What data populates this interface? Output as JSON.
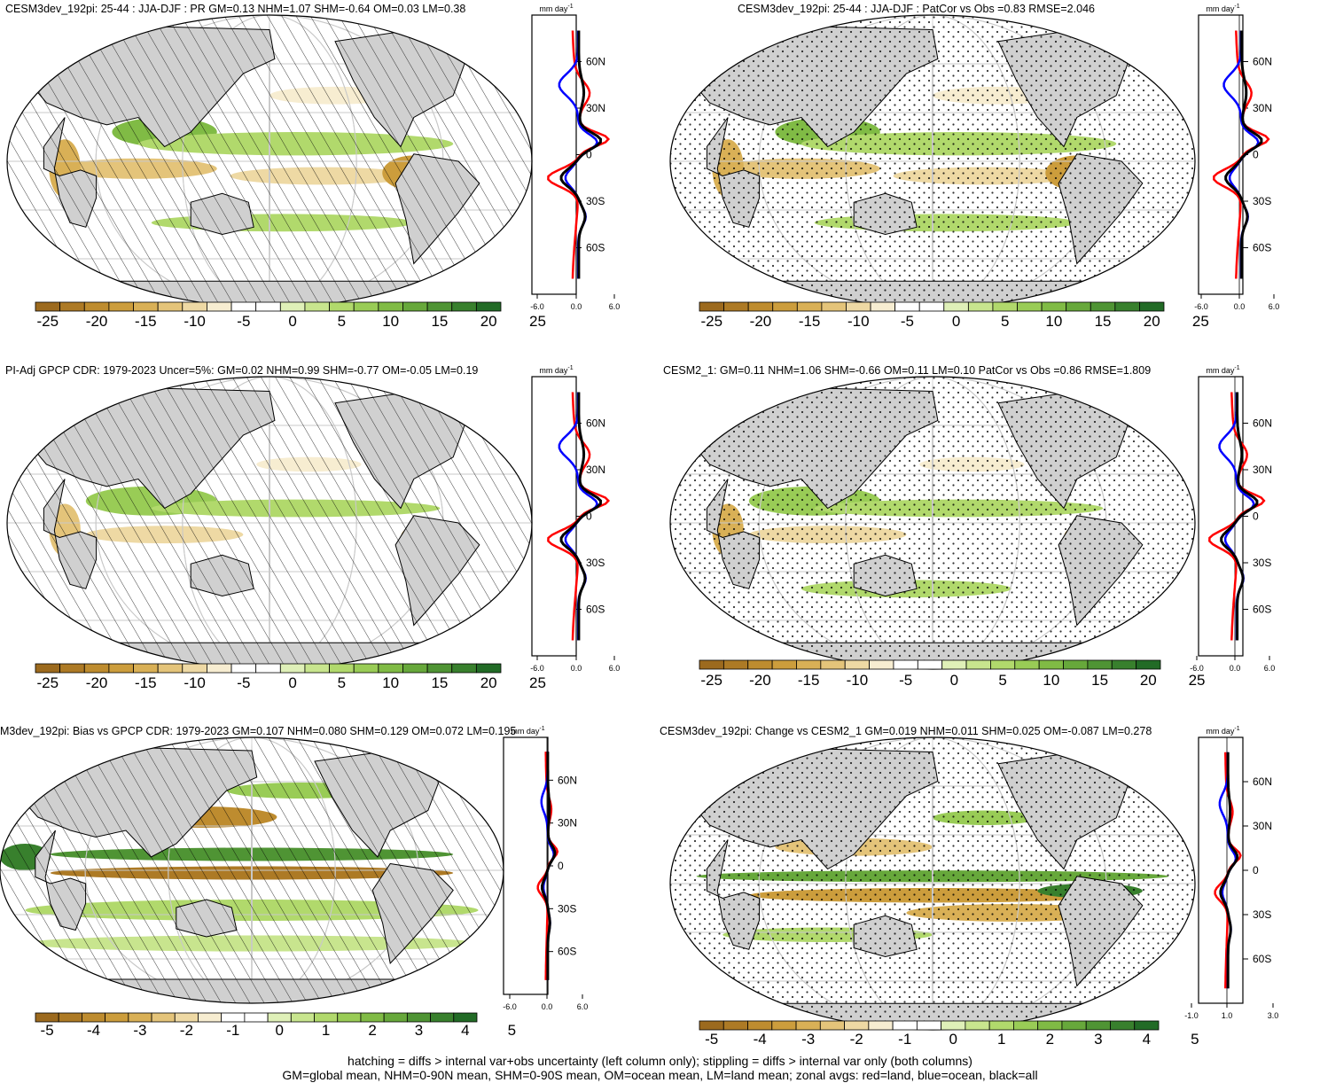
{
  "palette": [
    "#9c6a1e",
    "#ad7a25",
    "#be8c2f",
    "#cc9d3c",
    "#d9b056",
    "#e4c47a",
    "#eed9a4",
    "#f7edd1",
    "#ffffff",
    "#ffffff",
    "#dff0b8",
    "#c8e58e",
    "#b1d96c",
    "#99cc56",
    "#80bb45",
    "#67a83b",
    "#4f9434",
    "#38802d",
    "#226b26"
  ],
  "colors": {
    "land": "#d0d0d0",
    "land_series": "#ff0000",
    "ocean_series": "#0000ff",
    "all_series": "#000000"
  },
  "zonal_lat_labels": [
    "60N",
    "30N",
    "0",
    "30S",
    "60S"
  ],
  "zonal_unit": "mm day",
  "zonal_unit_sup": "-1",
  "panels": [
    {
      "title": "CESM3dev_192pi: 25-44 : JJA-DJF : PR GM=0.13 NHM=1.07 SHM=-0.64 OM=0.03 LM=0.38",
      "cb_labels": [
        "-25",
        "-20",
        "-15",
        "-10",
        "-5",
        "0",
        "5",
        "10",
        "15",
        "20",
        "25"
      ],
      "zonal_x_labels": [
        "-6.0",
        "0.0",
        "6.0"
      ],
      "hatch": true,
      "stipple": false
    },
    {
      "title": "CESM3dev_192pi: 25-44 : JJA-DJF : PatCor vs Obs =0.83 RMSE=2.046",
      "cb_labels": [
        "-25",
        "-20",
        "-15",
        "-10",
        "-5",
        "0",
        "5",
        "10",
        "15",
        "20",
        "25"
      ],
      "zonal_x_labels": [
        "-6.0",
        "0.0",
        "6.0"
      ],
      "hatch": false,
      "stipple": true
    },
    {
      "title": "PI-Adj GPCP CDR: 1979-2023 Uncer=5%: GM=0.02 NHM=0.99 SHM=-0.77 OM=-0.05 LM=0.19",
      "cb_labels": [
        "-25",
        "-20",
        "-15",
        "-10",
        "-5",
        "0",
        "5",
        "10",
        "15",
        "20",
        "25"
      ],
      "zonal_x_labels": [
        "-6.0",
        "0.0",
        "6.0"
      ],
      "hatch": true,
      "stipple": false
    },
    {
      "title": "CESM2_1: GM=0.11 NHM=1.06 SHM=-0.66 OM=0.11 LM=0.10 PatCor vs Obs =0.86 RMSE=1.809",
      "cb_labels": [
        "-25",
        "-20",
        "-15",
        "-10",
        "-5",
        "0",
        "5",
        "10",
        "15",
        "20",
        "25"
      ],
      "zonal_x_labels": [
        "-6.0",
        "0.0",
        "6.0"
      ],
      "hatch": false,
      "stipple": true
    },
    {
      "title": "M3dev_192pi: Bias vs GPCP CDR: 1979-2023 GM=0.107 NHM=0.080 SHM=0.129 OM=0.072 LM=0.195",
      "cb_labels": [
        "-5",
        "-4",
        "-3",
        "-2",
        "-1",
        "0",
        "1",
        "2",
        "3",
        "4",
        "5"
      ],
      "zonal_x_labels": [
        "-6.0",
        "0.0",
        "6.0"
      ],
      "hatch": true,
      "stipple": false
    },
    {
      "title": "CESM3dev_192pi: Change vs CESM2_1 GM=0.019 NHM=0.011 SHM=0.025 OM=-0.087 LM=0.278",
      "cb_labels": [
        "-5",
        "-4",
        "-3",
        "-2",
        "-1",
        "0",
        "1",
        "2",
        "3",
        "4",
        "5"
      ],
      "zonal_x_labels": [
        "-1.0",
        "1.0",
        "3.0"
      ],
      "hatch": false,
      "stipple": true
    }
  ],
  "footer": {
    "line1": "hatching = diffs > internal var+obs uncertainty (left column only); stippling = diffs > internal var only (both columns)",
    "line2": "GM=global mean, NHM=0-90N mean, SHM=0-90S mean, OM=ocean mean, LM=land mean; zonal avgs: red=land, blue=ocean, black=all"
  }
}
